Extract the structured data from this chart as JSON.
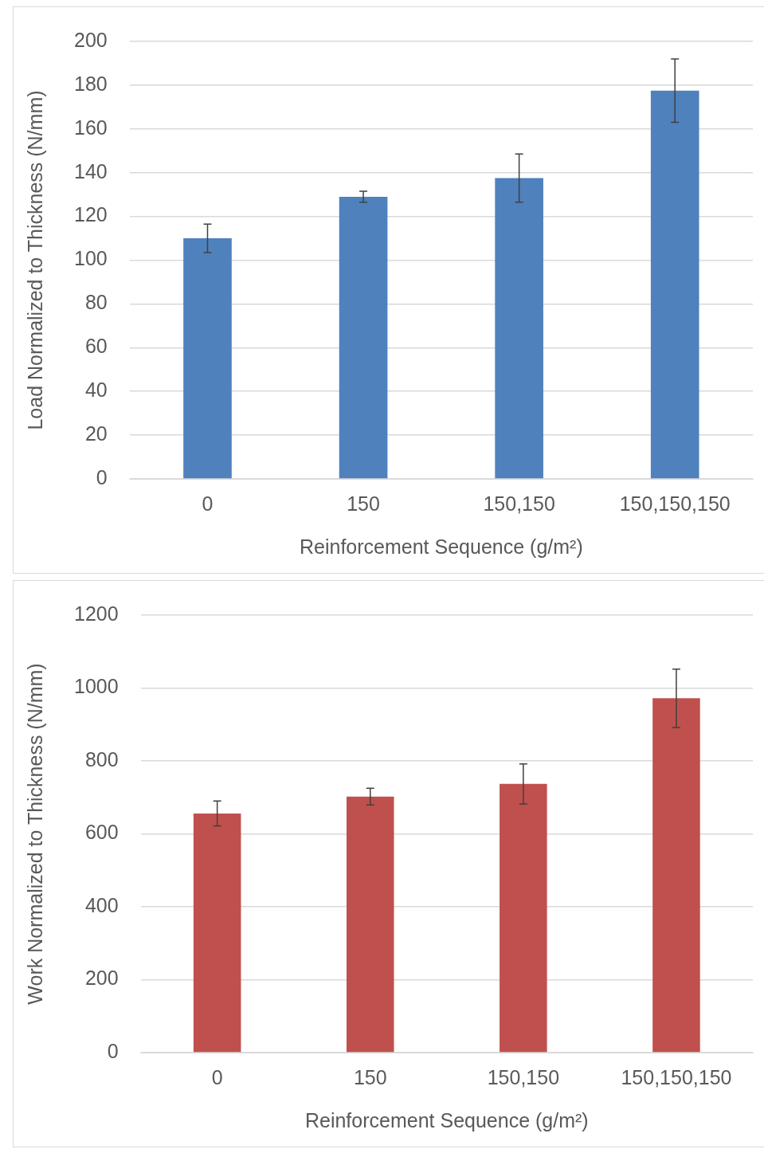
{
  "chart_data": [
    {
      "type": "bar",
      "xlabel": "Reinforcement Sequence (g/m²)",
      "ylabel": "Load Normalized to Thickness (N/mm)",
      "categories": [
        "0",
        "150",
        "150,150",
        "150,150,150"
      ],
      "values": [
        110,
        129,
        137.5,
        177.5
      ],
      "errors": [
        6.5,
        2.5,
        11,
        14.5
      ],
      "color": "#4f81bd",
      "ylim": [
        0,
        200
      ],
      "yticks": [
        0,
        20,
        40,
        60,
        80,
        100,
        120,
        140,
        160,
        180,
        200
      ],
      "grid": "y",
      "legend": false
    },
    {
      "type": "bar",
      "xlabel": "Reinforcement Sequence (g/m²)",
      "ylabel": "Work Normalized to Thickness (N/mm)",
      "categories": [
        "0",
        "150",
        "150,150",
        "150,150,150"
      ],
      "values": [
        656,
        702,
        737,
        972
      ],
      "errors": [
        34,
        23,
        55,
        80
      ],
      "color": "#c0504d",
      "ylim": [
        0,
        1200
      ],
      "yticks": [
        0,
        200,
        400,
        600,
        800,
        1000,
        1200
      ],
      "grid": "y",
      "legend": false
    }
  ]
}
